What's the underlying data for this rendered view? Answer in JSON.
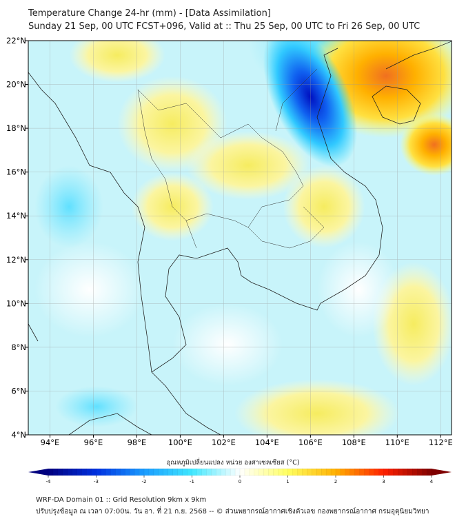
{
  "title": "Temperature Change 24-hr (mm) - [Data Assimilation]",
  "subtitle": "Sunday 21 Sep, 00 UTC FCST+096, Valid at :: Thu 25 Sep, 00 UTC to Fri 26 Sep, 00 UTC",
  "map": {
    "lon_range": [
      93,
      112.5
    ],
    "lat_range": [
      4,
      22
    ],
    "lon_ticks": [
      "94°E",
      "96°E",
      "98°E",
      "100°E",
      "102°E",
      "104°E",
      "106°E",
      "108°E",
      "110°E",
      "112°E"
    ],
    "lat_ticks": [
      "4°N",
      "6°N",
      "8°N",
      "10°N",
      "12°N",
      "14°N",
      "16°N",
      "18°N",
      "20°N",
      "22°N"
    ],
    "background_color": "#c8f4fa"
  },
  "colorbar": {
    "label": "อุณหภูมิเปลี่ยนแปลง หน่วย องศาเซลเซียส (°C)",
    "ticks": [
      "-4",
      "-3",
      "-2",
      "-1",
      "0",
      "1",
      "2",
      "3",
      "4"
    ],
    "range": [
      -4,
      4
    ],
    "colors": [
      "#00007f",
      "#0030e0",
      "#1a9cff",
      "#40e8ff",
      "#ffffff",
      "#ffff60",
      "#ffb000",
      "#ff2000",
      "#7f0000"
    ]
  },
  "footer": {
    "line1": "WRF-DA Domain 01 :: Grid Resolution 9km x 9km",
    "line2": "ปรับปรุงข้อมูล ณ เวลา 07:00น. วัน อา. ที่ 21 ก.ย. 2568 -- © ส่วนพยากรณ์อากาศเชิงตัวเลข กองพยากรณ์อากาศ กรมอุตุนิยมวิทยา"
  }
}
